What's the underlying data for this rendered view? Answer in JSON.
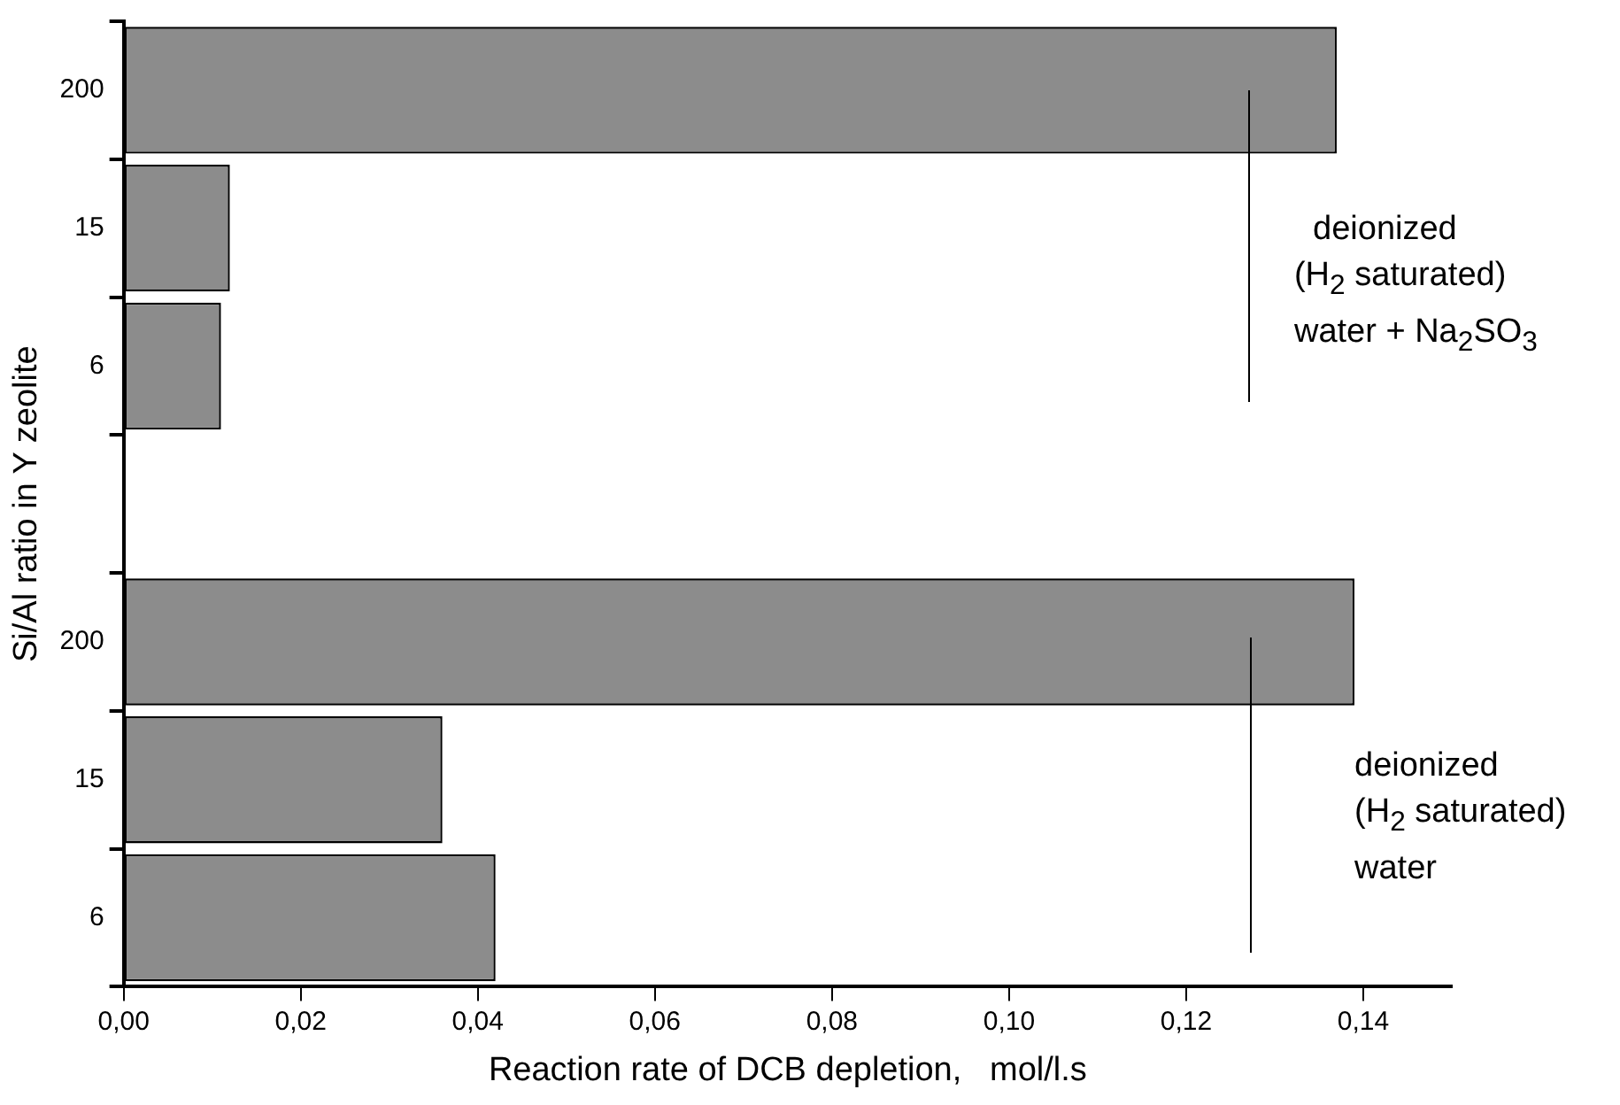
{
  "chart_data": {
    "type": "bar",
    "orientation": "horizontal",
    "xlabel": "Reaction rate of DCB depletion,   mol/l.s",
    "ylabel": "Si/Al ratio in Y zeolite",
    "categories": [
      "200",
      "15",
      "6",
      null,
      "200",
      "15",
      "6"
    ],
    "values": [
      0.137,
      0.012,
      0.011,
      null,
      0.139,
      0.036,
      0.042
    ],
    "color": "#8c8c8c",
    "xlim": [
      0,
      0.15
    ],
    "xticks": [
      {
        "value": 0,
        "label": "0,00"
      },
      {
        "value": 0.02,
        "label": "0,02"
      },
      {
        "value": 0.04,
        "label": "0,04"
      },
      {
        "value": 0.06,
        "label": "0,06"
      },
      {
        "value": 0.08,
        "label": "0,08"
      },
      {
        "value": 0.1,
        "label": "0,10"
      },
      {
        "value": 0.12,
        "label": "0,12"
      },
      {
        "value": 0.14,
        "label": "0,14"
      }
    ],
    "annotations": [
      {
        "text": "deionized\n(H$_{2}$ saturated)\nwater + Na$_{2}$SO$_{3}$",
        "x": 0.127,
        "y": "200"
      },
      "deionized\n(H$_{2}$ saturated)\nwater"
    ],
    "grid": false,
    "legend": false
  }
}
